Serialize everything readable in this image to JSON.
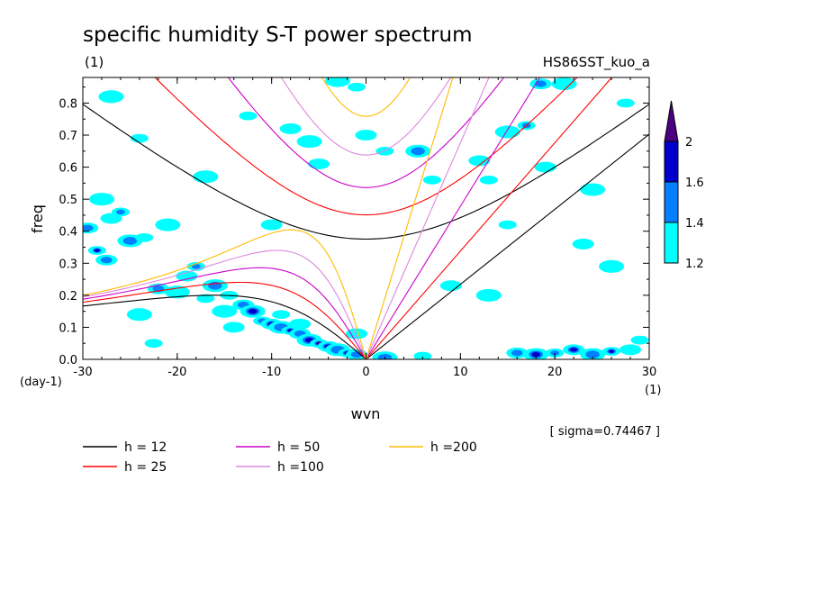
{
  "chart_data": {
    "type": "heatmap",
    "title": "specific humidity S-T power spectrum",
    "subtitle_left": "(1)",
    "subtitle_right": "HS86SST_kuo_a",
    "xlabel": "wvn",
    "ylabel": "freq",
    "x_unit": "(1)",
    "y_unit": "(day-1)",
    "xlim": [
      -30,
      30
    ],
    "ylim": [
      0,
      0.88
    ],
    "x_ticks": [
      -30,
      -20,
      -10,
      0,
      10,
      20,
      30
    ],
    "x_tick_labels": [
      "-30",
      "-20",
      "-10",
      "0",
      "10",
      "20",
      "30"
    ],
    "y_ticks": [
      0,
      0.1,
      0.2,
      0.3,
      0.4,
      0.5,
      0.6,
      0.7,
      0.8
    ],
    "y_tick_labels": [
      "0.0",
      "0.1",
      "0.2",
      "0.3",
      "0.4",
      "0.5",
      "0.6",
      "0.7",
      "0.8"
    ],
    "annotation": "[ sigma=0.74467 ]",
    "colorbar": {
      "levels": [
        1.2,
        1.4,
        1.6,
        2
      ],
      "labels": [
        "1.2",
        "1.4",
        "1.6",
        "2"
      ],
      "colors": [
        "#00ffff",
        "#0080ff",
        "#0000cc",
        "#4b0082"
      ]
    },
    "contour_patches": [
      {
        "x": -28.5,
        "y": 0.34,
        "level": 3
      },
      {
        "x": -27.5,
        "y": 0.31,
        "level": 2
      },
      {
        "x": -28,
        "y": 0.5,
        "level": 1
      },
      {
        "x": -26,
        "y": 0.46,
        "level": 2
      },
      {
        "x": -27,
        "y": 0.44,
        "level": 1
      },
      {
        "x": -25,
        "y": 0.37,
        "level": 2
      },
      {
        "x": -23.5,
        "y": 0.38,
        "level": 1
      },
      {
        "x": -29.5,
        "y": 0.41,
        "level": 2
      },
      {
        "x": -21,
        "y": 0.42,
        "level": 1
      },
      {
        "x": -18,
        "y": 0.29,
        "level": 2
      },
      {
        "x": -19,
        "y": 0.26,
        "level": 1
      },
      {
        "x": -16,
        "y": 0.23,
        "level": 2
      },
      {
        "x": -14.5,
        "y": 0.2,
        "level": 1
      },
      {
        "x": -22,
        "y": 0.22,
        "level": 2
      },
      {
        "x": -20,
        "y": 0.21,
        "level": 1
      },
      {
        "x": -17,
        "y": 0.19,
        "level": 1
      },
      {
        "x": -13,
        "y": 0.17,
        "level": 2
      },
      {
        "x": -12,
        "y": 0.15,
        "level": 3
      },
      {
        "x": -11,
        "y": 0.12,
        "level": 2
      },
      {
        "x": -10,
        "y": 0.11,
        "level": 3
      },
      {
        "x": -9,
        "y": 0.1,
        "level": 2
      },
      {
        "x": -8,
        "y": 0.09,
        "level": 3
      },
      {
        "x": -7,
        "y": 0.08,
        "level": 2
      },
      {
        "x": -6,
        "y": 0.06,
        "level": 3
      },
      {
        "x": -5,
        "y": 0.05,
        "level": 4
      },
      {
        "x": -4,
        "y": 0.04,
        "level": 3
      },
      {
        "x": -3,
        "y": 0.03,
        "level": 2
      },
      {
        "x": -2,
        "y": 0.02,
        "level": 3
      },
      {
        "x": -1,
        "y": 0.015,
        "level": 2
      },
      {
        "x": -15,
        "y": 0.15,
        "level": 1
      },
      {
        "x": -9,
        "y": 0.14,
        "level": 1
      },
      {
        "x": -7,
        "y": 0.11,
        "level": 1
      },
      {
        "x": -24,
        "y": 0.14,
        "level": 1
      },
      {
        "x": -22.5,
        "y": 0.05,
        "level": 1
      },
      {
        "x": -1,
        "y": 0.08,
        "level": 1
      },
      {
        "x": 2,
        "y": 0.005,
        "level": 2
      },
      {
        "x": 6,
        "y": 0.01,
        "level": 1
      },
      {
        "x": 16,
        "y": 0.02,
        "level": 2
      },
      {
        "x": 18,
        "y": 0.015,
        "level": 3
      },
      {
        "x": 20,
        "y": 0.02,
        "level": 2
      },
      {
        "x": 22,
        "y": 0.03,
        "level": 3
      },
      {
        "x": 24,
        "y": 0.015,
        "level": 2
      },
      {
        "x": 26,
        "y": 0.025,
        "level": 3
      },
      {
        "x": 28,
        "y": 0.03,
        "level": 1
      },
      {
        "x": -27,
        "y": 0.82,
        "level": 1
      },
      {
        "x": -12.5,
        "y": 0.76,
        "level": 1
      },
      {
        "x": -8,
        "y": 0.72,
        "level": 1
      },
      {
        "x": -3,
        "y": 0.87,
        "level": 1
      },
      {
        "x": -1,
        "y": 0.85,
        "level": 1
      },
      {
        "x": -5,
        "y": 0.61,
        "level": 1
      },
      {
        "x": -6,
        "y": 0.68,
        "level": 1
      },
      {
        "x": -24,
        "y": 0.69,
        "level": 1
      },
      {
        "x": -10,
        "y": 0.42,
        "level": 1
      },
      {
        "x": -17,
        "y": 0.57,
        "level": 1
      },
      {
        "x": 2,
        "y": 0.65,
        "level": 1
      },
      {
        "x": 0,
        "y": 0.7,
        "level": 1
      },
      {
        "x": 5.5,
        "y": 0.65,
        "level": 2
      },
      {
        "x": 7,
        "y": 0.56,
        "level": 1
      },
      {
        "x": 12,
        "y": 0.62,
        "level": 1
      },
      {
        "x": 15,
        "y": 0.71,
        "level": 1
      },
      {
        "x": 17,
        "y": 0.73,
        "level": 2
      },
      {
        "x": 18.5,
        "y": 0.86,
        "level": 2
      },
      {
        "x": 21,
        "y": 0.86,
        "level": 1
      },
      {
        "x": 13,
        "y": 0.56,
        "level": 1
      },
      {
        "x": 19,
        "y": 0.6,
        "level": 1
      },
      {
        "x": 24,
        "y": 0.53,
        "level": 1
      },
      {
        "x": 27.5,
        "y": 0.8,
        "level": 1
      },
      {
        "x": 23,
        "y": 0.36,
        "level": 1
      },
      {
        "x": 26,
        "y": 0.29,
        "level": 1
      },
      {
        "x": 15,
        "y": 0.42,
        "level": 1
      },
      {
        "x": 9,
        "y": 0.23,
        "level": 1
      },
      {
        "x": 13,
        "y": 0.2,
        "level": 1
      },
      {
        "x": 29,
        "y": 0.06,
        "level": 1
      },
      {
        "x": -14,
        "y": 0.1,
        "level": 1
      }
    ],
    "series": [
      {
        "name": "h = 12",
        "h": 12,
        "color": "#000000"
      },
      {
        "name": "h = 25",
        "h": 25,
        "color": "#ff0000"
      },
      {
        "name": "h = 50",
        "h": 50,
        "color": "#cc00cc"
      },
      {
        "name": "h =100",
        "h": 100,
        "color": "#dd88dd"
      },
      {
        "name": "h =200",
        "h": 200,
        "color": "#ffbb00"
      }
    ]
  }
}
